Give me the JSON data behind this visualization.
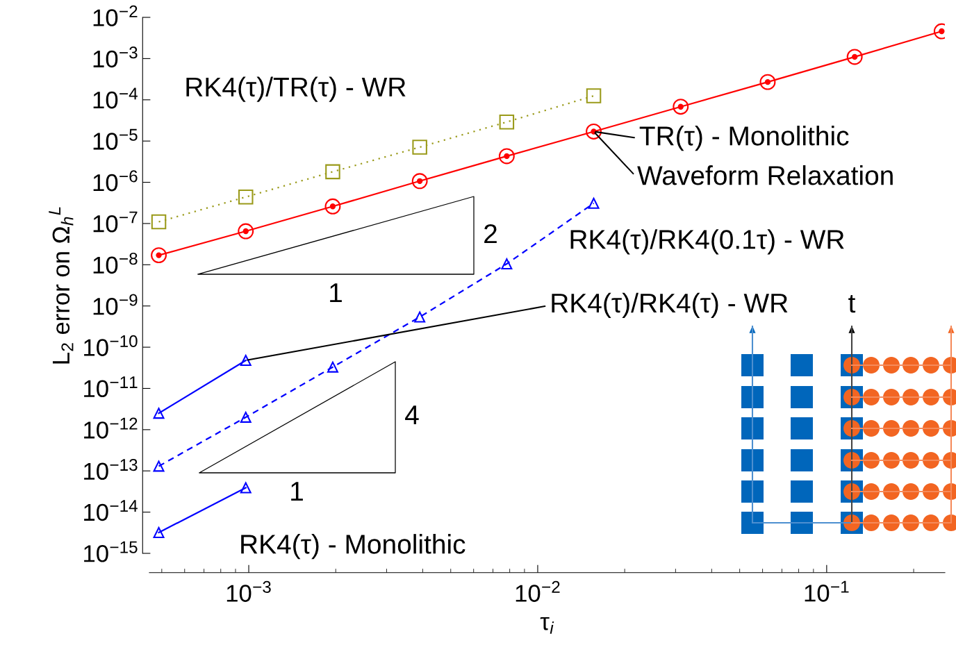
{
  "chart_data": {
    "type": "line",
    "xlabel": "τ$_{i}$",
    "ylabel": "L$_{2}$ error on Ω$_{h}$$^{L}$",
    "log": "xy",
    "grid": false,
    "xlim": [
      0.000453,
      0.2565
    ],
    "xticks": [
      {
        "value": 0.001,
        "label": "10$^{−3}$"
      },
      {
        "value": 0.01,
        "label": "10$^{−2}$"
      },
      {
        "value": 0.1,
        "label": "10$^{−1}$"
      }
    ],
    "ylim": [
      1e-15,
      0.01
    ],
    "yticks": [
      {
        "value": 1e-15,
        "label": "10$^{−15}$"
      },
      {
        "value": 1e-14,
        "label": "10$^{−14}$"
      },
      {
        "value": 1e-13,
        "label": "10$^{−13}$"
      },
      {
        "value": 1e-12,
        "label": "10$^{−12}$"
      },
      {
        "value": 1e-11,
        "label": "10$^{−11}$"
      },
      {
        "value": 1e-10,
        "label": "10$^{−10}$"
      },
      {
        "value": 1e-09,
        "label": "10$^{−9}$"
      },
      {
        "value": 1e-08,
        "label": "10$^{−8}$"
      },
      {
        "value": 1e-07,
        "label": "10$^{−7}$"
      },
      {
        "value": 1e-06,
        "label": "10$^{−6}$"
      },
      {
        "value": 1e-05,
        "label": "10$^{−5}$"
      },
      {
        "value": 0.0001,
        "label": "10$^{−4}$"
      },
      {
        "value": 0.001,
        "label": "10$^{−3}$"
      },
      {
        "value": 0.01,
        "label": "10$^{−2}$"
      }
    ],
    "series": [
      {
        "color": "#ff0000",
        "marker": "circle",
        "line_style": "solid",
        "x": [
          0.00048828125,
          0.0009765625,
          0.001953125,
          0.00390625,
          0.0078125,
          0.015625,
          0.03125,
          0.0625,
          0.125,
          0.25
        ],
        "values": [
          1.7e-08,
          6.5e-08,
          2.6e-07,
          1.07e-06,
          4.3e-06,
          1.7e-05,
          6.8e-05,
          0.00027,
          0.0011,
          0.0046
        ]
      },
      {
        "color": "#9a9a1a",
        "marker": "square",
        "line_style": "dotted",
        "x": [
          0.00048828125,
          0.0009765625,
          0.001953125,
          0.00390625,
          0.0078125,
          0.015625
        ],
        "values": [
          1.1e-07,
          4.4e-07,
          1.8e-06,
          7.1e-06,
          2.9e-05,
          0.000125
        ]
      },
      {
        "color": "#0000ff",
        "marker": "triangle",
        "line_style": "dashed",
        "x": [
          0.00048828125,
          0.0009765625,
          0.001953125,
          0.00390625,
          0.0078125,
          0.015625
        ],
        "values": [
          1.3e-13,
          2e-12,
          3.3e-11,
          5.4e-10,
          1.05e-08,
          3.1e-07
        ]
      },
      {
        "color": "#0000ff",
        "marker": "triangle",
        "line_style": "solid",
        "x": [
          0.00048828125,
          0.0009765625
        ],
        "values": [
          2.5e-12,
          4.8e-11
        ]
      },
      {
        "color": "#0000ff",
        "marker": "triangle",
        "line_style": "solid",
        "x": [
          0.00048828125,
          0.0009765625
        ],
        "values": [
          3.2e-15,
          3.9e-14
        ]
      }
    ],
    "annotations": [
      {
        "text": "RK4(τ)/TR(τ) - WR",
        "x": 0.00390625,
        "y": 7.1e-06
      },
      {
        "text": "TR(τ) - Monolithic",
        "x": 0.015625,
        "y": 1.7e-05
      },
      {
        "text": "Waveform Relaxation",
        "x": 0.015625,
        "y": 1.7e-05
      },
      {
        "text": "RK4(τ)/RK4(0.1τ) - WR",
        "x": 0.015625,
        "y": 3.1e-07
      },
      {
        "text": "RK4(τ)/RK4(τ) - WR",
        "x": 0.0009765625,
        "y": 4.8e-11
      },
      {
        "text": "RK4(τ) - Monolithic",
        "x": 0.0009765625,
        "y": 3.9e-14
      },
      "2",
      "1",
      "4",
      "1",
      "t"
    ]
  }
}
